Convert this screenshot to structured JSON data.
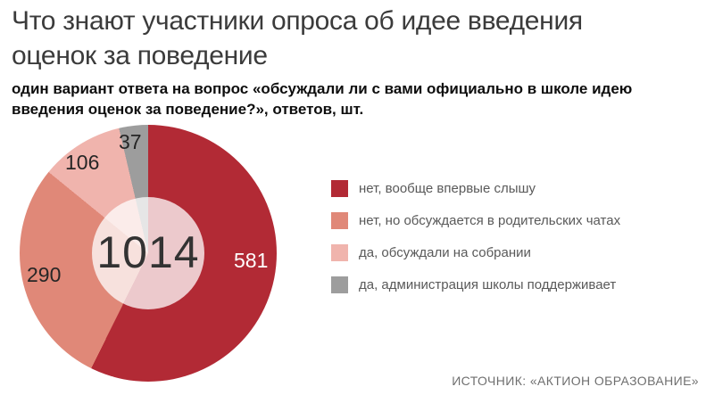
{
  "header": {
    "title": "Что знают участники опроса об идее введения оценок за поведение",
    "subtitle": "один вариант ответа на вопрос «обсуждали ли с вами официально в школе идею введения оценок за поведение?», ответов, шт."
  },
  "chart_data": {
    "type": "pie",
    "donut": true,
    "title": "Что знают участники опроса об идее введения оценок за поведение",
    "center_label": "1014",
    "total": 1014,
    "start_angle_deg": 0,
    "direction": "clockwise",
    "legend_position": "right",
    "inner_circle_overlay": "rgba(255,255,255,0.75)",
    "segments": [
      {
        "label": "нет, вообще впервые слышу",
        "value": 581,
        "color": "#b22a35",
        "value_label_color": "#ffffff"
      },
      {
        "label": "нет, но обсуждается в родительских чатах",
        "value": 290,
        "color": "#e08878",
        "value_label_color": "#262626"
      },
      {
        "label": "да, обсуждали на собрании",
        "value": 106,
        "color": "#f0b4ad",
        "value_label_color": "#262626"
      },
      {
        "label": "да, администрация школы поддерживает",
        "value": 37,
        "color": "#9d9d9d",
        "value_label_color": "#262626"
      }
    ]
  },
  "footer": {
    "source": "ИСТОЧНИК: «АКТИОН ОБРАЗОВАНИЕ»"
  }
}
